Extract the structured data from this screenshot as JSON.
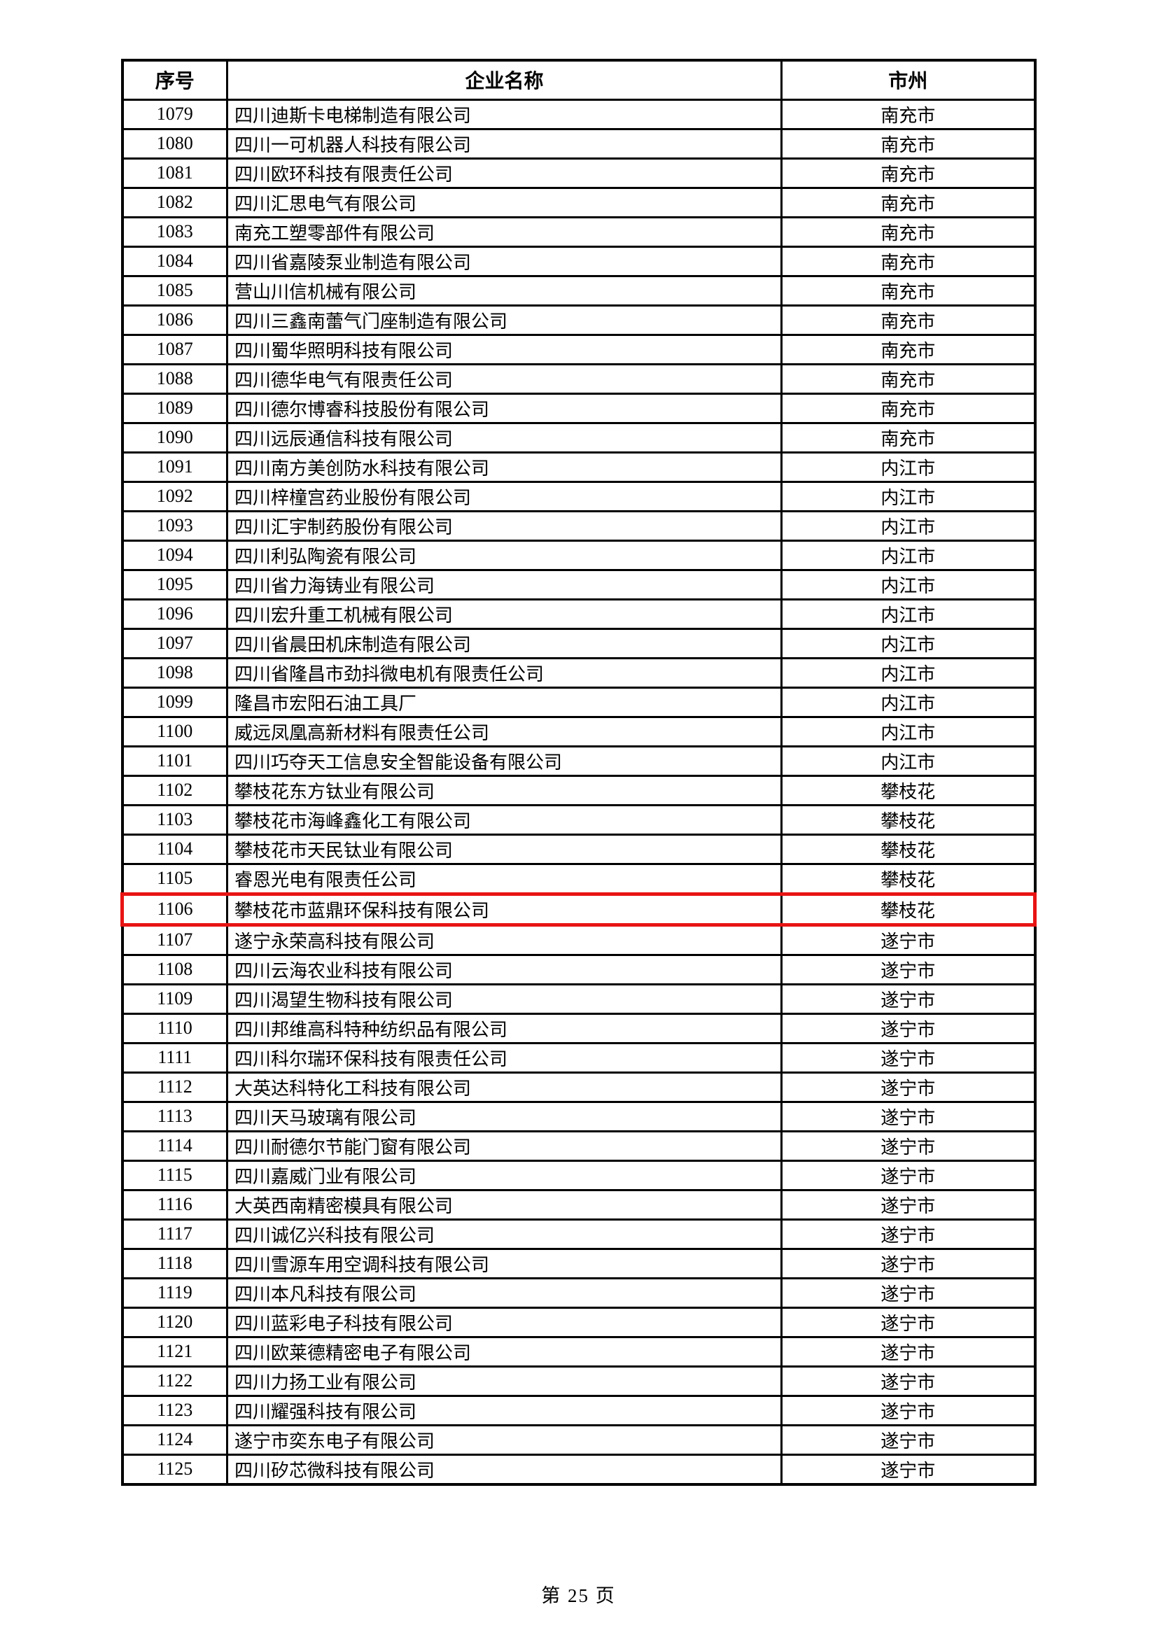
{
  "page": {
    "footer": "第 25 页"
  },
  "table": {
    "headers": [
      "序号",
      "企业名称",
      "市州"
    ],
    "highlight_color": "#e81414",
    "rows": [
      {
        "no": "1079",
        "name": "四川迪斯卡电梯制造有限公司",
        "city": "南充市"
      },
      {
        "no": "1080",
        "name": "四川一可机器人科技有限公司",
        "city": "南充市"
      },
      {
        "no": "1081",
        "name": "四川欧环科技有限责任公司",
        "city": "南充市"
      },
      {
        "no": "1082",
        "name": "四川汇思电气有限公司",
        "city": "南充市"
      },
      {
        "no": "1083",
        "name": "南充工塑零部件有限公司",
        "city": "南充市"
      },
      {
        "no": "1084",
        "name": "四川省嘉陵泵业制造有限公司",
        "city": "南充市"
      },
      {
        "no": "1085",
        "name": "营山川信机械有限公司",
        "city": "南充市"
      },
      {
        "no": "1086",
        "name": "四川三鑫南蕾气门座制造有限公司",
        "city": "南充市"
      },
      {
        "no": "1087",
        "name": "四川蜀华照明科技有限公司",
        "city": "南充市"
      },
      {
        "no": "1088",
        "name": "四川德华电气有限责任公司",
        "city": "南充市"
      },
      {
        "no": "1089",
        "name": "四川德尔博睿科技股份有限公司",
        "city": "南充市"
      },
      {
        "no": "1090",
        "name": "四川远辰通信科技有限公司",
        "city": "南充市"
      },
      {
        "no": "1091",
        "name": "四川南方美创防水科技有限公司",
        "city": "内江市"
      },
      {
        "no": "1092",
        "name": "四川梓橦宫药业股份有限公司",
        "city": "内江市"
      },
      {
        "no": "1093",
        "name": "四川汇宇制药股份有限公司",
        "city": "内江市"
      },
      {
        "no": "1094",
        "name": "四川利弘陶瓷有限公司",
        "city": "内江市"
      },
      {
        "no": "1095",
        "name": "四川省力海铸业有限公司",
        "city": "内江市"
      },
      {
        "no": "1096",
        "name": "四川宏升重工机械有限公司",
        "city": "内江市"
      },
      {
        "no": "1097",
        "name": "四川省晨田机床制造有限公司",
        "city": "内江市"
      },
      {
        "no": "1098",
        "name": "四川省隆昌市劲抖微电机有限责任公司",
        "city": "内江市"
      },
      {
        "no": "1099",
        "name": "隆昌市宏阳石油工具厂",
        "city": "内江市"
      },
      {
        "no": "1100",
        "name": "威远凤凰高新材料有限责任公司",
        "city": "内江市"
      },
      {
        "no": "1101",
        "name": "四川巧夺天工信息安全智能设备有限公司",
        "city": "内江市"
      },
      {
        "no": "1102",
        "name": "攀枝花东方钛业有限公司",
        "city": "攀枝花"
      },
      {
        "no": "1103",
        "name": "攀枝花市海峰鑫化工有限公司",
        "city": "攀枝花"
      },
      {
        "no": "1104",
        "name": "攀枝花市天民钛业有限公司",
        "city": "攀枝花"
      },
      {
        "no": "1105",
        "name": "睿恩光电有限责任公司",
        "city": "攀枝花"
      },
      {
        "no": "1106",
        "name": "攀枝花市蓝鼎环保科技有限公司",
        "city": "攀枝花",
        "highlighted": true
      },
      {
        "no": "1107",
        "name": "遂宁永荣高科技有限公司",
        "city": "遂宁市"
      },
      {
        "no": "1108",
        "name": "四川云海农业科技有限公司",
        "city": "遂宁市"
      },
      {
        "no": "1109",
        "name": "四川渴望生物科技有限公司",
        "city": "遂宁市"
      },
      {
        "no": "1110",
        "name": "四川邦维高科特种纺织品有限公司",
        "city": "遂宁市"
      },
      {
        "no": "1111",
        "name": "四川科尔瑞环保科技有限责任公司",
        "city": "遂宁市"
      },
      {
        "no": "1112",
        "name": "大英达科特化工科技有限公司",
        "city": "遂宁市"
      },
      {
        "no": "1113",
        "name": "四川天马玻璃有限公司",
        "city": "遂宁市"
      },
      {
        "no": "1114",
        "name": "四川耐德尔节能门窗有限公司",
        "city": "遂宁市"
      },
      {
        "no": "1115",
        "name": "四川嘉威门业有限公司",
        "city": "遂宁市"
      },
      {
        "no": "1116",
        "name": "大英西南精密模具有限公司",
        "city": "遂宁市"
      },
      {
        "no": "1117",
        "name": "四川诚亿兴科技有限公司",
        "city": "遂宁市"
      },
      {
        "no": "1118",
        "name": "四川雪源车用空调科技有限公司",
        "city": "遂宁市"
      },
      {
        "no": "1119",
        "name": "四川本凡科技有限公司",
        "city": "遂宁市"
      },
      {
        "no": "1120",
        "name": "四川蓝彩电子科技有限公司",
        "city": "遂宁市"
      },
      {
        "no": "1121",
        "name": "四川欧莱德精密电子有限公司",
        "city": "遂宁市"
      },
      {
        "no": "1122",
        "name": "四川力扬工业有限公司",
        "city": "遂宁市"
      },
      {
        "no": "1123",
        "name": "四川耀强科技有限公司",
        "city": "遂宁市"
      },
      {
        "no": "1124",
        "name": "遂宁市奕东电子有限公司",
        "city": "遂宁市"
      },
      {
        "no": "1125",
        "name": "四川矽芯微科技有限公司",
        "city": "遂宁市"
      }
    ]
  }
}
